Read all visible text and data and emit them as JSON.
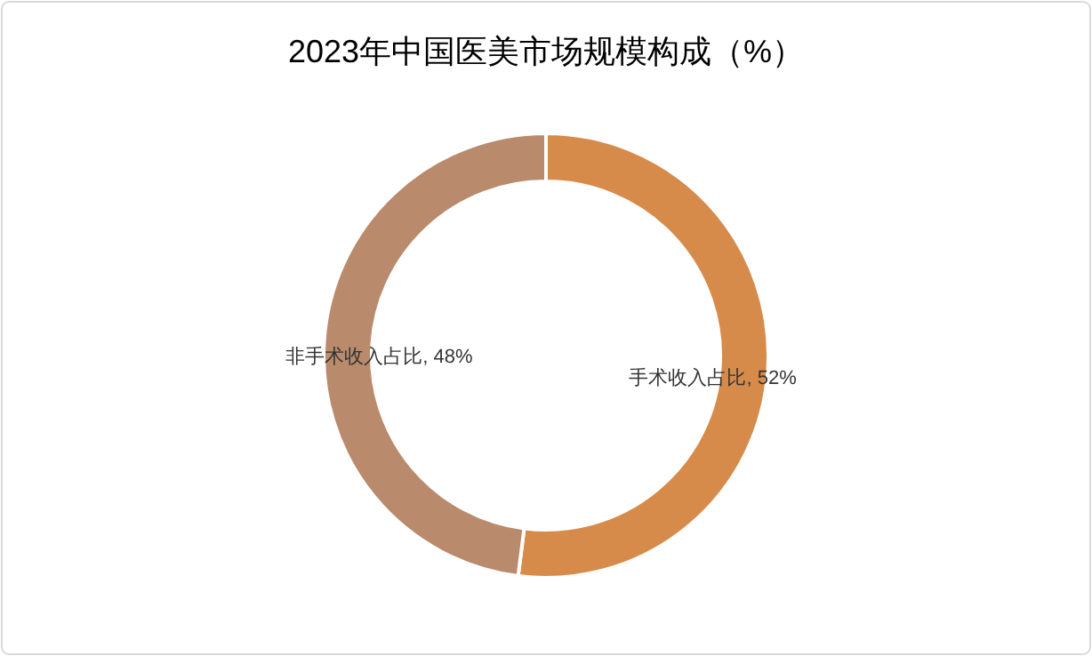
{
  "chart_data": {
    "type": "donut",
    "title": "2023年中国医美市场规模构成（%）",
    "categories": [
      "手术收入占比",
      "非手术收入占比"
    ],
    "values": [
      52,
      48
    ],
    "colors": [
      "#d68b4b",
      "#b98b6c"
    ],
    "value_labels": [
      "52%",
      "48%"
    ]
  }
}
